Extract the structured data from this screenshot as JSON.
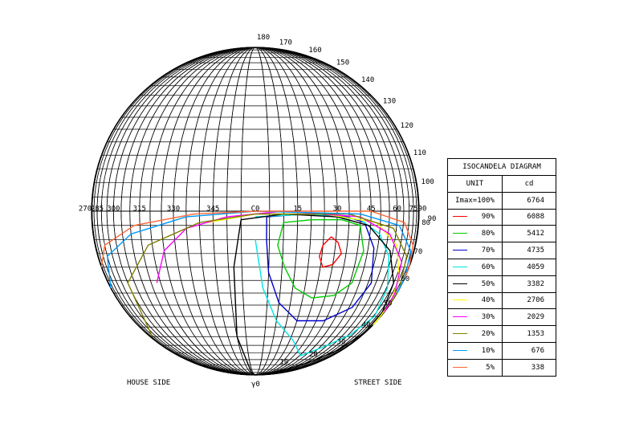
{
  "chart_data": {
    "type": "isocandela polar diagram",
    "title": "ISOCANDELA DIAGRAM",
    "unit_label": "UNIT",
    "unit": "cd",
    "imax_label": "Imax=100%",
    "imax_value": 6764,
    "horizontal_axis_ticks": [
      "270",
      "285",
      "300",
      "315",
      "330",
      "345",
      "C0",
      "15",
      "30",
      "45",
      "60",
      "75",
      "90"
    ],
    "perimeter_ticks_top": [
      "180",
      "170",
      "160",
      "150",
      "140",
      "130",
      "120",
      "110",
      "100",
      "90"
    ],
    "perimeter_ticks_bottom": [
      "80",
      "70",
      "60",
      "50",
      "40",
      "30",
      "20",
      "10"
    ],
    "bottom_pole_label": "γ0",
    "side_labels": {
      "left": "HOUSE SIDE",
      "right": "STREET SIDE"
    },
    "series": [
      {
        "name": "90%",
        "value": 6088,
        "color": "#ff0000",
        "points": [
          [
            28,
            9
          ],
          [
            31,
            11
          ],
          [
            33,
            15
          ],
          [
            30,
            19
          ],
          [
            26,
            20
          ],
          [
            24,
            16
          ],
          [
            25,
            12
          ],
          [
            28,
            9
          ]
        ]
      },
      {
        "name": "80%",
        "value": 5412,
        "color": "#00cc00",
        "points": [
          [
            10,
            4
          ],
          [
            20,
            3
          ],
          [
            32,
            3
          ],
          [
            40,
            5
          ],
          [
            43,
            14
          ],
          [
            41,
            26
          ],
          [
            34,
            31
          ],
          [
            24,
            32
          ],
          [
            16,
            28
          ],
          [
            11,
            20
          ],
          [
            8,
            12
          ],
          [
            10,
            4
          ]
        ]
      },
      {
        "name": "70%",
        "value": 4735,
        "color": "#0000cc",
        "points": [
          [
            4,
            2
          ],
          [
            18,
            1
          ],
          [
            34,
            2
          ],
          [
            42,
            4
          ],
          [
            48,
            13
          ],
          [
            52,
            26
          ],
          [
            47,
            36
          ],
          [
            34,
            42
          ],
          [
            20,
            42
          ],
          [
            10,
            34
          ],
          [
            5,
            22
          ],
          [
            4,
            10
          ],
          [
            4,
            2
          ]
        ]
      },
      {
        "name": "60%",
        "value": 4059,
        "color": "#00e5e5",
        "points": [
          [
            0,
            2
          ],
          [
            20,
            1
          ],
          [
            40,
            3
          ],
          [
            50,
            8
          ],
          [
            58,
            16
          ],
          [
            66,
            28
          ],
          [
            72,
            40
          ],
          [
            62,
            49
          ],
          [
            48,
            56
          ],
          [
            36,
            62
          ],
          [
            22,
            52
          ],
          [
            10,
            42
          ],
          [
            3,
            28
          ],
          [
            0,
            10
          ]
        ]
      },
      {
        "name": "50%",
        "value": 3382,
        "color": "#000000",
        "points": [
          [
            355,
            3
          ],
          [
            10,
            1
          ],
          [
            30,
            2
          ],
          [
            44,
            5
          ],
          [
            58,
            14
          ],
          [
            70,
            26
          ],
          [
            80,
            38
          ],
          [
            84,
            48
          ],
          [
            72,
            58
          ],
          [
            60,
            66
          ],
          [
            50,
            72
          ],
          [
            40,
            80
          ],
          [
            20,
            88
          ],
          [
            5,
            90
          ],
          [
            358,
            90
          ],
          [
            352,
            80
          ],
          [
            350,
            50
          ],
          [
            352,
            20
          ],
          [
            355,
            3
          ]
        ]
      },
      {
        "name": "40%",
        "value": 2706,
        "color": "#ffff00",
        "points": [
          [
            343,
            4
          ],
          [
            0,
            1
          ],
          [
            25,
            1
          ],
          [
            48,
            4
          ],
          [
            62,
            12
          ],
          [
            74,
            24
          ],
          [
            84,
            34
          ],
          [
            90,
            42
          ],
          [
            90,
            44
          ]
        ]
      },
      {
        "name": "30%",
        "value": 2029,
        "color": "#ff00ff",
        "points": [
          [
            318,
            26
          ],
          [
            325,
            14
          ],
          [
            335,
            6
          ],
          [
            350,
            2
          ],
          [
            10,
            0
          ],
          [
            40,
            2
          ],
          [
            56,
            8
          ],
          [
            70,
            18
          ],
          [
            80,
            30
          ],
          [
            90,
            38
          ]
        ]
      },
      {
        "name": "20%",
        "value": 1353,
        "color": "#808000",
        "points": [
          [
            282,
            50
          ],
          [
            300,
            26
          ],
          [
            318,
            12
          ],
          [
            340,
            4
          ],
          [
            0,
            1
          ],
          [
            35,
            1
          ],
          [
            58,
            6
          ],
          [
            74,
            16
          ],
          [
            86,
            28
          ],
          [
            90,
            34
          ]
        ]
      },
      {
        "name": "10%",
        "value": 676,
        "color": "#0099ff",
        "points": [
          [
            272,
            28
          ],
          [
            290,
            16
          ],
          [
            310,
            8
          ],
          [
            335,
            2
          ],
          [
            0,
            0
          ],
          [
            40,
            1
          ],
          [
            62,
            5
          ],
          [
            78,
            14
          ],
          [
            88,
            24
          ],
          [
            90,
            30
          ]
        ]
      },
      {
        "name": "5%",
        "value": 338,
        "color": "#ff6633",
        "points": [
          [
            270,
            20
          ],
          [
            290,
            12
          ],
          [
            312,
            5
          ],
          [
            338,
            1
          ],
          [
            0,
            0
          ],
          [
            45,
            0
          ],
          [
            66,
            4
          ],
          [
            80,
            12
          ],
          [
            88,
            20
          ],
          [
            90,
            24
          ]
        ]
      }
    ]
  }
}
